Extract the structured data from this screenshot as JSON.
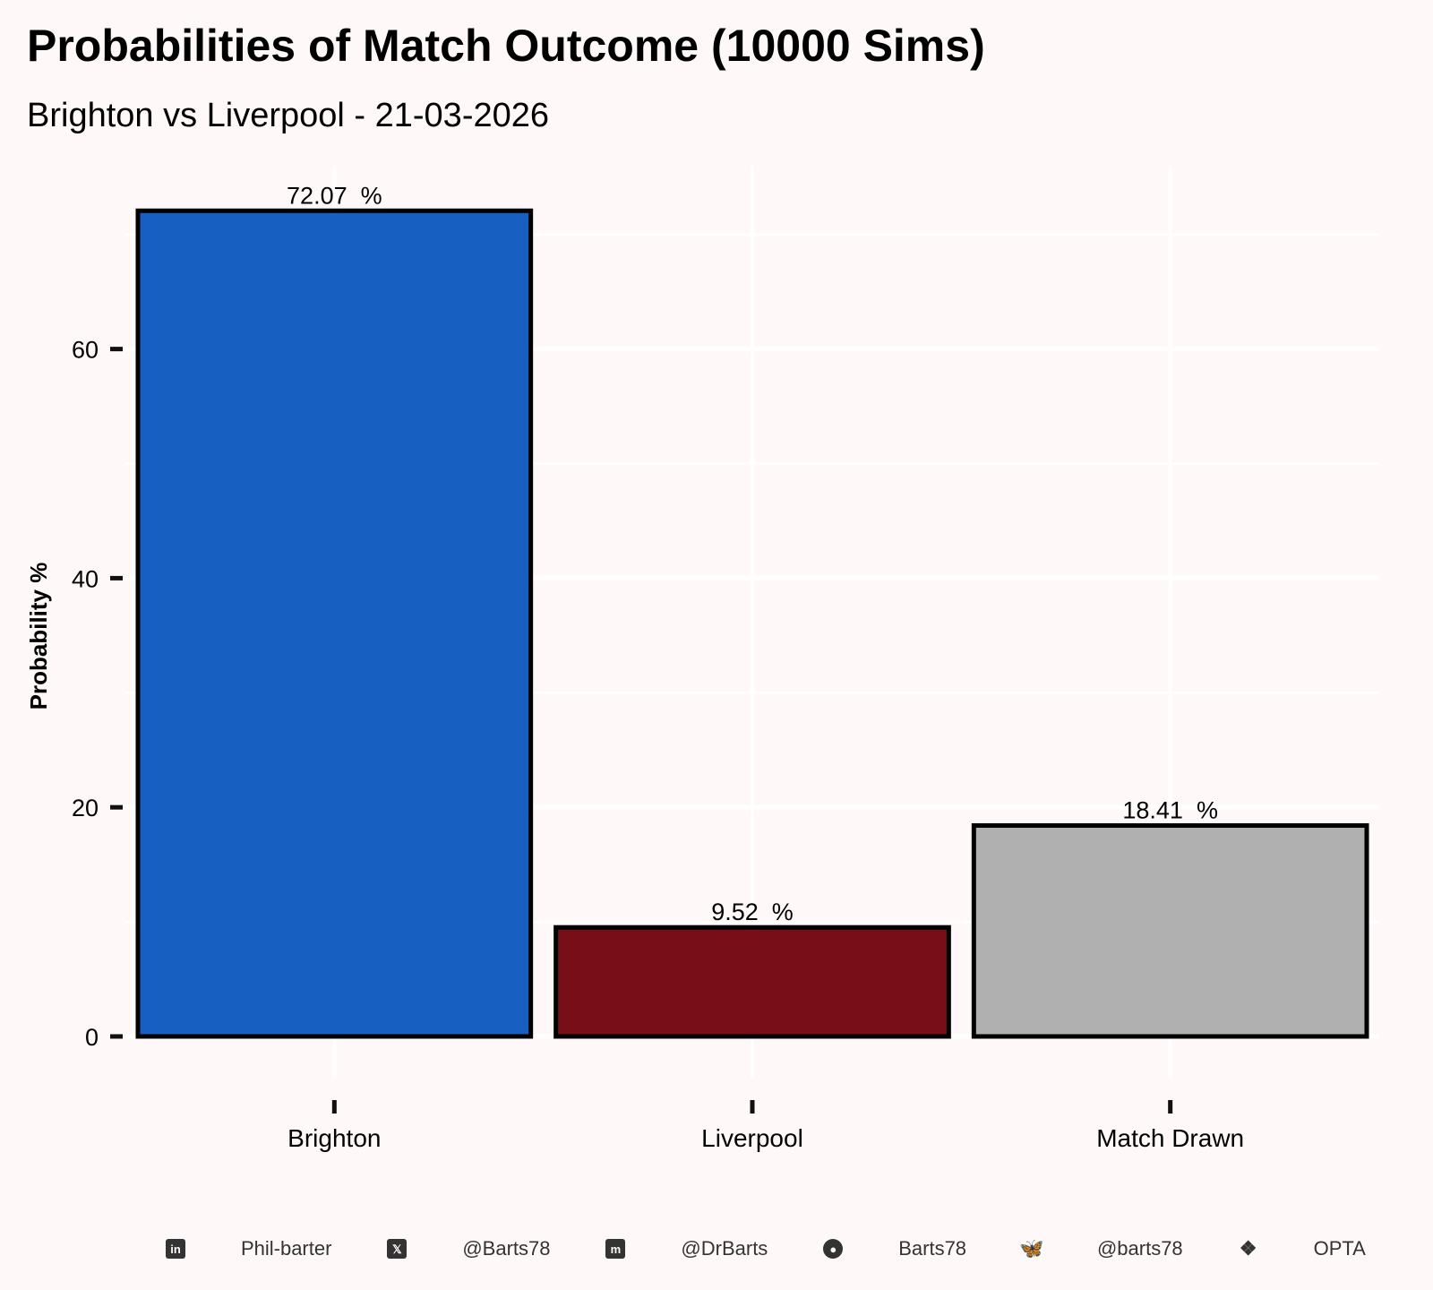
{
  "chart_data": {
    "type": "bar",
    "title": "Probabilities of Match Outcome (10000 Sims)",
    "subtitle": "Brighton vs Liverpool - 21-03-2026",
    "xlabel": "",
    "ylabel": "Probability %",
    "categories": [
      "Brighton",
      "Liverpool",
      "Match Drawn"
    ],
    "values": [
      72.07,
      9.52,
      18.41
    ],
    "data_labels": [
      "72.07  %",
      "9.52  %",
      "18.41  %"
    ],
    "bar_colors": [
      "#175fc1",
      "#780e17",
      "#b0b0b0"
    ],
    "bar_outline": "#000000",
    "yticks": [
      0,
      20,
      40,
      60
    ],
    "ytick_labels": [
      "0",
      "20",
      "40",
      "60"
    ],
    "ylim": [
      -3.6,
      76
    ],
    "grid": true,
    "grid_color": "#ffffff",
    "background": "#fef9f8"
  },
  "caption": {
    "items": [
      {
        "icon": "linkedin-icon",
        "text": "Phil-barter"
      },
      {
        "icon": "x-twitter-icon",
        "text": "@Barts78"
      },
      {
        "icon": "mastodon-icon",
        "text": "@DrBarts"
      },
      {
        "icon": "github-icon",
        "text": "Barts78"
      },
      {
        "icon": "bluesky-icon",
        "text": "@barts78"
      },
      {
        "icon": "dropbox-icon",
        "text": "OPTA"
      }
    ]
  }
}
